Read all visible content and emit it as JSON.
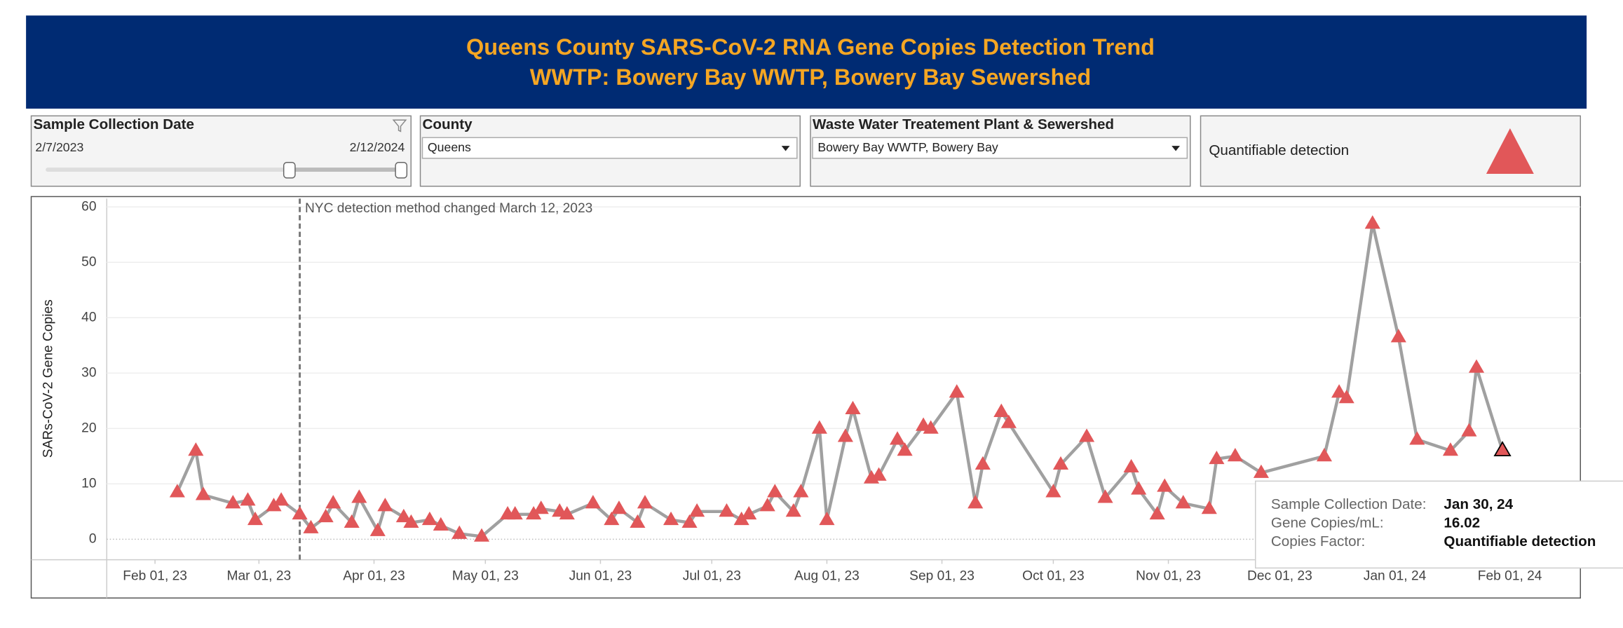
{
  "header": {
    "title": "Queens County SARS-CoV-2 RNA Gene Copies Detection Trend",
    "subtitle": "WWTP: Bowery Bay WWTP, Bowery Bay Sewershed"
  },
  "filters": {
    "date": {
      "label": "Sample Collection Date",
      "start": "2/7/2023",
      "end": "2/12/2024"
    },
    "county": {
      "label": "County",
      "value": "Queens"
    },
    "plant": {
      "label": "Waste Water Treatement Plant & Sewershed",
      "value": "Bowery Bay WWTP, Bowery Bay"
    }
  },
  "tooltip": {
    "rows": [
      {
        "label": "Sample Collection Date:",
        "value": "Jan 30, 24"
      },
      {
        "label": "Gene Copies/mL:",
        "value": "16.02"
      },
      {
        "label": "Copies Factor:",
        "value": "Quantifiable detection"
      }
    ]
  },
  "chart_data": {
    "type": "line",
    "y_label": "SARs-CoV-2 Gene Copies",
    "annotation": {
      "text": "NYC detection method changed March 12, 2023",
      "x": "2023-03-12"
    },
    "x": [
      "2023-02-07",
      "2023-02-12",
      "2023-02-14",
      "2023-02-22",
      "2023-02-26",
      "2023-02-28",
      "2023-03-05",
      "2023-03-07",
      "2023-03-12",
      "2023-03-15",
      "2023-03-19",
      "2023-03-21",
      "2023-03-26",
      "2023-03-28",
      "2023-04-02",
      "2023-04-04",
      "2023-04-09",
      "2023-04-11",
      "2023-04-16",
      "2023-04-19",
      "2023-04-24",
      "2023-04-30",
      "2023-05-07",
      "2023-05-09",
      "2023-05-14",
      "2023-05-16",
      "2023-05-21",
      "2023-05-23",
      "2023-05-30",
      "2023-06-04",
      "2023-06-06",
      "2023-06-11",
      "2023-06-13",
      "2023-06-20",
      "2023-06-25",
      "2023-06-27",
      "2023-07-05",
      "2023-07-09",
      "2023-07-11",
      "2023-07-16",
      "2023-07-18",
      "2023-07-23",
      "2023-07-25",
      "2023-07-30",
      "2023-08-01",
      "2023-08-06",
      "2023-08-08",
      "2023-08-13",
      "2023-08-15",
      "2023-08-20",
      "2023-08-22",
      "2023-08-27",
      "2023-08-29",
      "2023-09-05",
      "2023-09-10",
      "2023-09-12",
      "2023-09-17",
      "2023-09-19",
      "2023-10-01",
      "2023-10-03",
      "2023-10-10",
      "2023-10-15",
      "2023-10-22",
      "2023-10-24",
      "2023-10-29",
      "2023-10-31",
      "2023-11-05",
      "2023-11-12",
      "2023-11-14",
      "2023-11-19",
      "2023-11-26",
      "2023-12-13",
      "2023-12-17",
      "2023-12-19",
      "2023-12-26",
      "2024-01-02",
      "2024-01-07",
      "2024-01-16",
      "2024-01-21",
      "2024-01-23",
      "2024-01-30"
    ],
    "series": [
      {
        "name": "Quantifiable detection",
        "color": "#e15759",
        "line_color": "#a0a0a0",
        "values": [
          8.5,
          16,
          8,
          6.5,
          7,
          3.5,
          6,
          7,
          4.5,
          2,
          4,
          6.5,
          3,
          7.5,
          1.5,
          6,
          4,
          3,
          3.5,
          2.5,
          1,
          0.5,
          4.5,
          4.5,
          4.5,
          5.5,
          5,
          4.5,
          6.5,
          3.5,
          5.5,
          3,
          6.5,
          3.5,
          3,
          5,
          5,
          3.5,
          4.5,
          6,
          8.5,
          5,
          8.5,
          20,
          3.5,
          18.5,
          23.5,
          11,
          11.5,
          18,
          16,
          20.5,
          20,
          26.5,
          6.5,
          13.5,
          23,
          21,
          8.5,
          13.5,
          18.5,
          7.5,
          13,
          9,
          4.5,
          9.5,
          6.5,
          5.5,
          14.5,
          15,
          12,
          15,
          26.5,
          25.5,
          57,
          36.5,
          18,
          16,
          19.5,
          31,
          16.02
        ]
      }
    ],
    "xlim": [
      "2023-01-19",
      "2024-02-20"
    ],
    "xticks": [
      {
        "value": "2023-02-01",
        "label": "Feb 01, 23"
      },
      {
        "value": "2023-03-01",
        "label": "Mar 01, 23"
      },
      {
        "value": "2023-04-01",
        "label": "Apr 01, 23"
      },
      {
        "value": "2023-05-01",
        "label": "May 01, 23"
      },
      {
        "value": "2023-06-01",
        "label": "Jun 01, 23"
      },
      {
        "value": "2023-07-01",
        "label": "Jul 01, 23"
      },
      {
        "value": "2023-08-01",
        "label": "Aug 01, 23"
      },
      {
        "value": "2023-09-01",
        "label": "Sep 01, 23"
      },
      {
        "value": "2023-10-01",
        "label": "Oct 01, 23"
      },
      {
        "value": "2023-11-01",
        "label": "Nov 01, 23"
      },
      {
        "value": "2023-12-01",
        "label": "Dec 01, 23"
      },
      {
        "value": "2024-01-01",
        "label": "Jan 01, 24"
      },
      {
        "value": "2024-02-01",
        "label": "Feb 01, 24"
      }
    ],
    "ylim": [
      -3.7,
      61.5
    ],
    "yticks": [
      0,
      10,
      20,
      30,
      40,
      50,
      60
    ],
    "grid": true
  }
}
